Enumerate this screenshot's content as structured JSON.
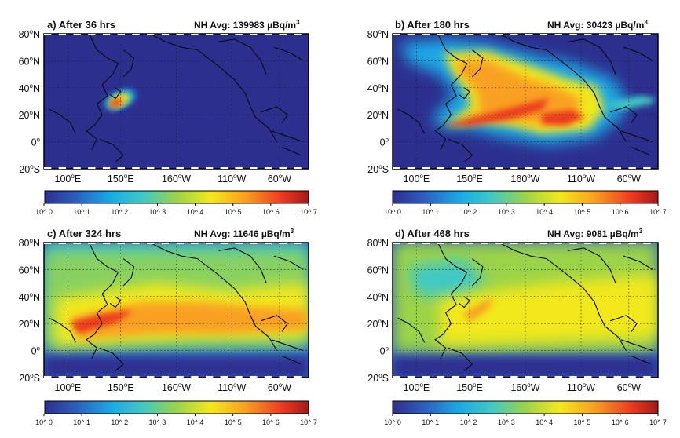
{
  "figure": {
    "panels": [
      {
        "title": "a) After 36 hrs",
        "avg_label": "NH Avg: 139983 µBq/m",
        "avg_sup": "3"
      },
      {
        "title": "b) After 180 hrs",
        "avg_label": "NH Avg: 30423 µBq/m",
        "avg_sup": "3"
      },
      {
        "title": "c) After 324 hrs",
        "avg_label": "NH Avg: 11646 µBq/m",
        "avg_sup": "3"
      },
      {
        "title": "d) After 468 hrs",
        "avg_label": "NH Avg: 9081 µBq/m",
        "avg_sup": "3"
      }
    ],
    "lat_ticks": [
      {
        "num": "80",
        "deg": "o",
        "hemi": "N"
      },
      {
        "num": "60",
        "deg": "o",
        "hemi": "N"
      },
      {
        "num": "40",
        "deg": "o",
        "hemi": "N"
      },
      {
        "num": "20",
        "deg": "o",
        "hemi": "N"
      },
      {
        "num": "0",
        "deg": "o",
        "hemi": ""
      },
      {
        "num": "20",
        "deg": "o",
        "hemi": "S"
      }
    ],
    "lon_ticks": [
      {
        "num": "100",
        "deg": "o",
        "hemi": "E"
      },
      {
        "num": "150",
        "deg": "o",
        "hemi": "E"
      },
      {
        "num": "160",
        "deg": "o",
        "hemi": "W"
      },
      {
        "num": "110",
        "deg": "o",
        "hemi": "W"
      },
      {
        "num": "60",
        "deg": "o",
        "hemi": "W"
      }
    ],
    "colorbar_ticks": [
      "10^ 0",
      "10^ 1",
      "10^ 2",
      "10^ 3",
      "10^ 4",
      "10^ 5",
      "10^ 6",
      "10^ 7"
    ],
    "colors": {
      "background": "#2d2f8f",
      "colormap": [
        "#2d2f8f",
        "#2c5fc0",
        "#1aa9e6",
        "#3fc9c4",
        "#9bd34a",
        "#f2e81a",
        "#f9a021",
        "#ec3a1f",
        "#a11a1a"
      ]
    }
  }
}
